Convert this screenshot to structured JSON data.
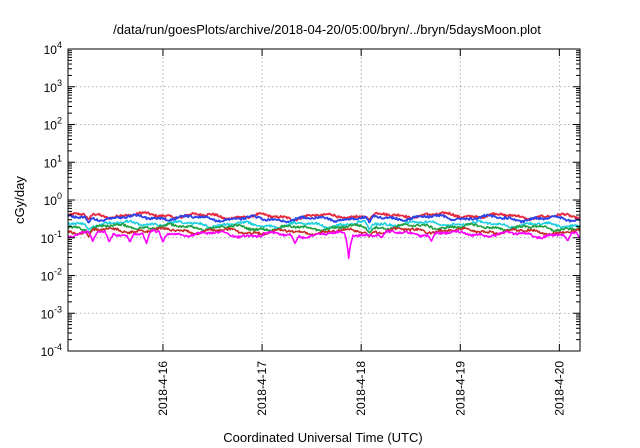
{
  "chart_data": {
    "type": "line",
    "title": "/data/run/goesPlots/archive/2018-04-20/05:00/bryn/../bryn/5daysMoon.plot",
    "xlabel": "Coordinated Universal Time (UTC)",
    "ylabel": "cGy/day",
    "yscale": "log",
    "ylim": [
      0.0001,
      10000
    ],
    "xlim": [
      "2018-04-15T01:00",
      "2018-04-20T05:00"
    ],
    "grid": true,
    "legend": "none",
    "y_ticks": [
      {
        "base": "10",
        "exp": "-4"
      },
      {
        "base": "10",
        "exp": "-3"
      },
      {
        "base": "10",
        "exp": "-2"
      },
      {
        "base": "10",
        "exp": "-1"
      },
      {
        "base": "10",
        "exp": "0"
      },
      {
        "base": "10",
        "exp": "1"
      },
      {
        "base": "10",
        "exp": "2"
      },
      {
        "base": "10",
        "exp": "3"
      },
      {
        "base": "10",
        "exp": "4"
      }
    ],
    "x_ticks": [
      {
        "label": "2018-4-16",
        "date": "2018-04-16T00:00"
      },
      {
        "label": "2018-4-17",
        "date": "2018-04-17T00:00"
      },
      {
        "label": "2018-4-18",
        "date": "2018-04-18T00:00"
      },
      {
        "label": "2018-4-19",
        "date": "2018-04-19T00:00"
      },
      {
        "label": "2018-4-20",
        "date": "2018-04-20T00:00"
      }
    ],
    "series": [
      {
        "color": "#e8283c",
        "baseline": 0.38,
        "dips": [
          [
            "2018-04-15T06:00",
            0.8
          ],
          [
            "2018-04-18T02:00",
            0.8
          ]
        ]
      },
      {
        "color": "#2a44e8",
        "baseline": 0.33,
        "dips": [
          [
            "2018-04-15T06:00",
            0.75
          ],
          [
            "2018-04-18T02:00",
            0.75
          ]
        ]
      },
      {
        "color": "#20d0e0",
        "baseline": 0.23,
        "dips": [
          [
            "2018-04-15T06:00",
            0.7
          ],
          [
            "2018-04-18T02:00",
            0.7
          ]
        ]
      },
      {
        "color": "#20a040",
        "baseline": 0.19,
        "dips": [
          [
            "2018-04-15T06:00",
            0.7
          ],
          [
            "2018-04-18T02:00",
            0.7
          ]
        ]
      },
      {
        "color": "#c82a2a",
        "baseline": 0.15,
        "dips": [
          [
            "2018-04-15T06:00",
            0.7
          ],
          [
            "2018-04-18T02:00",
            0.7
          ]
        ]
      },
      {
        "color": "#ff00ff",
        "baseline": 0.125,
        "dips": [
          [
            "2018-04-15T07:00",
            0.08
          ],
          [
            "2018-04-15T11:00",
            0.075
          ],
          [
            "2018-04-15T16:00",
            0.075
          ],
          [
            "2018-04-15T20:00",
            0.07
          ],
          [
            "2018-04-16T00:00",
            0.075
          ],
          [
            "2018-04-17T08:00",
            0.07
          ],
          [
            "2018-04-17T21:00",
            0.028
          ],
          [
            "2018-04-18T05:00",
            0.1
          ],
          [
            "2018-04-18T17:00",
            0.08
          ],
          [
            "2018-04-20T02:00",
            0.08
          ],
          [
            "2018-04-20T05:00",
            0.095
          ]
        ]
      }
    ]
  }
}
